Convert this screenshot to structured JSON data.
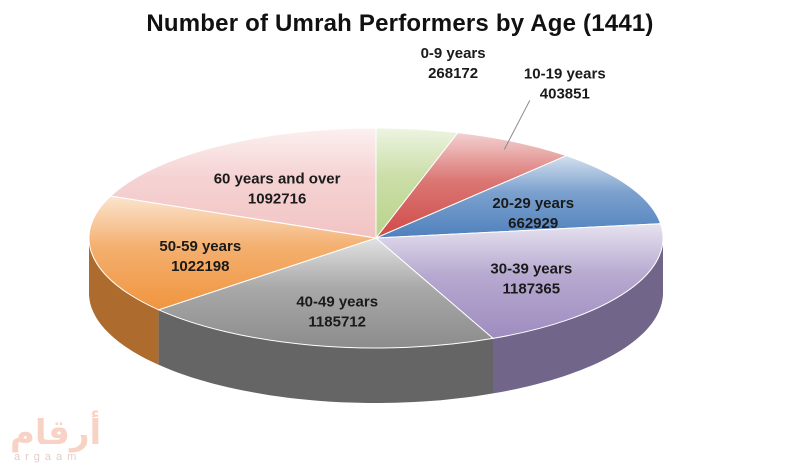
{
  "chart_data": {
    "type": "pie",
    "title": "Number of Umrah Performers by Age (1441)",
    "categories": [
      "0-9 years",
      "10-19 years",
      "20-29 years",
      "30-39 years",
      "40-49 years",
      "50-59 years",
      "60 years and over"
    ],
    "values": [
      268172,
      403851,
      662929,
      1187365,
      1185712,
      1022198,
      1092716
    ],
    "colors": [
      "#b9d38a",
      "#cf4a47",
      "#4f81bd",
      "#9e8cc0",
      "#8c8c8c",
      "#f0953f",
      "#f2c4c4"
    ],
    "style": "3d-exploded-off"
  },
  "watermark": {
    "arabic": "أرقام",
    "latin": "argaam"
  }
}
